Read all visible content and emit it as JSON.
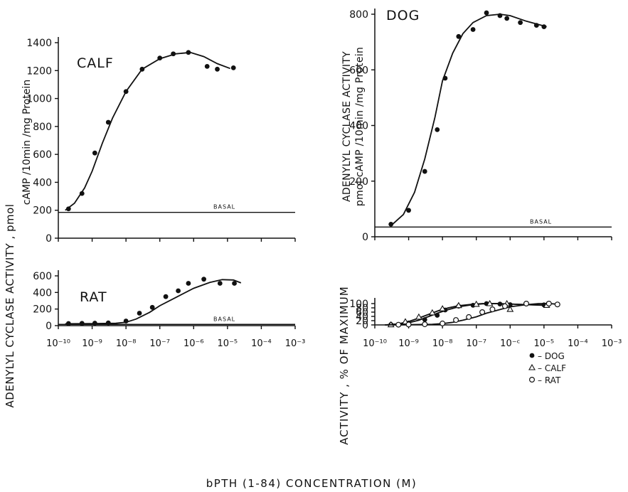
{
  "figure": {
    "shared_xlabel": "bPTH (1-84)  CONCENTRATION (M)",
    "shared_ylabel_left": "ADENYLYL  CYCLASE  ACTIVITY , pmol",
    "x_tick_labels": [
      "10⁻¹⁰",
      "10⁻⁹",
      "10⁻⁸",
      "10⁻⁷",
      "10⁻⁶",
      "10⁻⁵",
      "10⁻⁴",
      "10⁻³"
    ],
    "x_tick_labels_bottom_right": [
      "10⁻¹⁰",
      "10⁻⁹",
      "10⁻⁸",
      "10⁻⁷",
      "10⁻ᶜ",
      "10⁻⁵",
      "10⁻⁴",
      "10⁻³"
    ]
  },
  "chart_data": [
    {
      "type": "line",
      "panel_label": "CALF",
      "ylabel": "cAMP /10min /mg Protein",
      "ylim": [
        0,
        1400
      ],
      "yticks": [
        0,
        200,
        400,
        600,
        800,
        1000,
        1200,
        1400
      ],
      "xscale": "log",
      "xlim": [
        1e-10,
        0.001
      ],
      "basal_label": "BASAL",
      "basal": 185,
      "x": [
        2e-10,
        5e-10,
        1.2e-09,
        3e-09,
        1e-08,
        3e-08,
        1e-07,
        2.5e-07,
        7e-07,
        2.5e-06,
        5e-06,
        1.5e-05
      ],
      "y": [
        210,
        320,
        610,
        830,
        1050,
        1210,
        1290,
        1320,
        1330,
        1230,
        1210,
        1220
      ],
      "curve_x": [
        1.6e-10,
        3e-10,
        6e-10,
        1e-09,
        2e-09,
        4e-09,
        1e-08,
        3e-08,
        1e-07,
        3e-07,
        8e-07,
        2e-06,
        5e-06,
        1.2e-05
      ],
      "curve_y": [
        200,
        250,
        360,
        480,
        680,
        860,
        1050,
        1210,
        1285,
        1320,
        1330,
        1300,
        1250,
        1215
      ]
    },
    {
      "type": "line",
      "panel_label": "DOG",
      "ylabel": "ADENYLYL  CYCLASE  ACTIVITY\npmol  cAMP /10min /mg Protein",
      "ylim": [
        0,
        800
      ],
      "yticks": [
        0,
        200,
        400,
        600,
        800
      ],
      "xscale": "log",
      "xlim": [
        1e-10,
        0.001
      ],
      "basal_label": "BASAL",
      "basal": 35,
      "x": [
        3e-10,
        1e-09,
        3e-09,
        7e-09,
        1.2e-08,
        3e-08,
        8e-08,
        2e-07,
        5e-07,
        8e-07,
        2e-06,
        6e-06,
        1e-05
      ],
      "y": [
        45,
        95,
        235,
        385,
        570,
        720,
        745,
        805,
        795,
        785,
        770,
        760,
        755
      ],
      "curve_x": [
        3e-10,
        7e-10,
        1.5e-09,
        3e-09,
        6e-09,
        1e-08,
        2e-08,
        4e-08,
        8e-08,
        2e-07,
        5e-07,
        1e-06,
        3e-06,
        1.2e-05
      ],
      "curve_y": [
        40,
        80,
        160,
        280,
        430,
        560,
        660,
        730,
        770,
        795,
        800,
        795,
        775,
        755
      ]
    },
    {
      "type": "line",
      "panel_label": "RAT",
      "ylim": [
        0,
        600
      ],
      "yticks": [
        0,
        200,
        400,
        600
      ],
      "xscale": "log",
      "xlim": [
        1e-10,
        0.001
      ],
      "basal_label": "BASAL",
      "basal": 15,
      "x": [
        2e-10,
        5e-10,
        1.2e-09,
        3e-09,
        1e-08,
        2.5e-08,
        6e-08,
        1.5e-07,
        3.5e-07,
        7e-07,
        2e-06,
        6e-06,
        1.6e-05
      ],
      "y": [
        25,
        28,
        30,
        33,
        55,
        150,
        220,
        350,
        420,
        510,
        560,
        510,
        510
      ],
      "curve_x": [
        1.6e-10,
        1e-09,
        5e-09,
        1e-08,
        2e-08,
        5e-08,
        1e-07,
        3e-07,
        1e-06,
        3e-06,
        7e-06,
        1.5e-05,
        2.5e-05
      ],
      "curve_y": [
        22,
        24,
        28,
        40,
        80,
        160,
        240,
        340,
        450,
        520,
        555,
        550,
        515
      ]
    },
    {
      "type": "line",
      "ylabel": "ACTIVITY , % OF MAXIMUM",
      "ylim": [
        0,
        100
      ],
      "yticks": [
        0,
        20,
        40,
        60,
        80,
        100
      ],
      "xscale": "log",
      "xlim": [
        1e-10,
        0.001
      ],
      "legend_position": "right",
      "series": [
        {
          "name": "– DOG",
          "marker": "filled-circle",
          "x": [
            3e-10,
            1e-09,
            3e-09,
            7e-09,
            1.2e-08,
            3e-08,
            8e-08,
            2e-07,
            5e-07,
            1e-06,
            1e-05
          ],
          "y": [
            2,
            9,
            25,
            45,
            70,
            88,
            92,
            100,
            98,
            95,
            94
          ],
          "curve_x": [
            2e-10,
            5e-10,
            1e-09,
            2e-09,
            4e-09,
            8e-09,
            1.5e-08,
            3e-08,
            7e-08,
            1.5e-07,
            4e-07,
            1e-06,
            3e-06,
            1e-05
          ],
          "curve_y": [
            0,
            3,
            10,
            22,
            40,
            58,
            72,
            85,
            94,
            99,
            100,
            98,
            95,
            93
          ]
        },
        {
          "name": "– CALF",
          "marker": "open-triangle",
          "x": [
            3e-10,
            8e-10,
            2e-09,
            5e-09,
            1e-08,
            3e-08,
            1e-07,
            2.5e-07,
            8e-07,
            1e-06,
            1.2e-05
          ],
          "y": [
            1,
            15,
            37,
            57,
            76,
            91,
            97,
            100,
            100,
            73,
            92
          ],
          "curve_x": [
            2e-10,
            5e-10,
            1e-09,
            2e-09,
            4e-09,
            8e-09,
            1.5e-08,
            3e-08,
            7e-08,
            1.5e-07,
            4e-07,
            1e-06,
            3e-06,
            1e-05
          ],
          "curve_y": [
            0,
            5,
            16,
            32,
            50,
            68,
            80,
            90,
            96,
            100,
            100,
            98,
            95,
            92
          ]
        },
        {
          "name": "– RAT",
          "marker": "open-circle",
          "x": [
            5e-10,
            1e-09,
            3e-09,
            1e-08,
            2.5e-08,
            6e-08,
            1.5e-07,
            3e-07,
            7e-07,
            3e-06,
            1.4e-05,
            2.5e-05
          ],
          "y": [
            1,
            2,
            3,
            7,
            23,
            37,
            60,
            73,
            88,
            100,
            100,
            96
          ],
          "curve_x": [
            2e-10,
            1e-09,
            5e-09,
            1e-08,
            2e-08,
            4e-08,
            1e-07,
            2e-07,
            5e-07,
            1e-06,
            3e-06,
            7e-06,
            1.5e-05,
            3e-05
          ],
          "curve_y": [
            0,
            1,
            3,
            6,
            12,
            22,
            38,
            55,
            72,
            85,
            95,
            100,
            100,
            96
          ]
        }
      ]
    }
  ]
}
